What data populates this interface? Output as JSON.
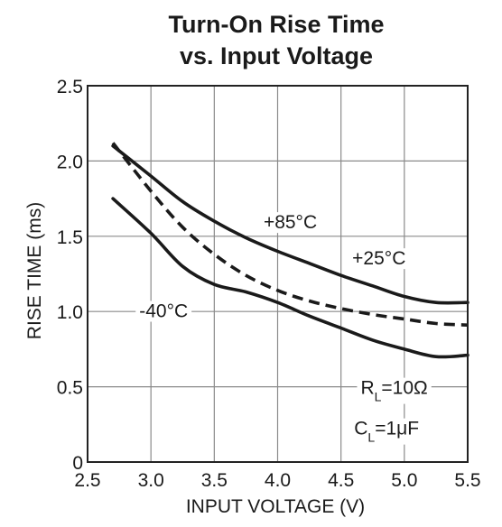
{
  "chart_data": {
    "type": "line",
    "title": [
      "Turn-On Rise Time",
      "vs. Input Voltage"
    ],
    "xlabel": "INPUT VOLTAGE (V)",
    "ylabel": "RISE TIME (ms)",
    "xlim": [
      2.5,
      5.5
    ],
    "ylim": [
      0,
      2.5
    ],
    "x_ticks": [
      2.5,
      3.0,
      3.5,
      4.0,
      4.5,
      5.0,
      5.5
    ],
    "x_tick_labels": [
      "2.5",
      "3.0",
      "3.5",
      "4.0",
      "4.5",
      "5.0",
      "5.5"
    ],
    "y_ticks": [
      0,
      0.5,
      1.0,
      1.5,
      2.0,
      2.5
    ],
    "y_tick_labels": [
      "0",
      "0.5",
      "1.0",
      "1.5",
      "2.0",
      "2.5"
    ],
    "grid": true,
    "series": [
      {
        "name": "+85°C",
        "style": "solid",
        "x": [
          2.7,
          3.0,
          3.25,
          3.5,
          3.75,
          4.0,
          4.25,
          4.5,
          4.75,
          5.0,
          5.25,
          5.5
        ],
        "y": [
          2.1,
          1.9,
          1.73,
          1.6,
          1.49,
          1.4,
          1.32,
          1.24,
          1.17,
          1.1,
          1.06,
          1.06
        ]
      },
      {
        "name": "+25°C",
        "style": "dashed",
        "x": [
          2.7,
          3.0,
          3.25,
          3.5,
          3.75,
          4.0,
          4.25,
          4.5,
          4.75,
          5.0,
          5.25,
          5.5
        ],
        "y": [
          2.12,
          1.8,
          1.56,
          1.38,
          1.24,
          1.14,
          1.07,
          1.02,
          0.98,
          0.95,
          0.92,
          0.91
        ]
      },
      {
        "name": "-40°C",
        "style": "solid",
        "x": [
          2.7,
          3.0,
          3.25,
          3.5,
          3.75,
          4.0,
          4.25,
          4.5,
          4.75,
          5.0,
          5.25,
          5.5
        ],
        "y": [
          1.75,
          1.52,
          1.3,
          1.18,
          1.13,
          1.06,
          0.97,
          0.89,
          0.81,
          0.75,
          0.7,
          0.71
        ]
      }
    ],
    "annotations": [
      {
        "id": "label-85",
        "text": "+85°C",
        "x": 4.1,
        "y": 1.6
      },
      {
        "id": "label-25",
        "text": "+25°C",
        "x": 4.8,
        "y": 1.36
      },
      {
        "id": "label-m40",
        "text": "-40°C",
        "x": 3.1,
        "y": 1.01
      },
      {
        "id": "label-rl",
        "main": "R",
        "sub": "L",
        "rest": "=10Ω",
        "x": 4.92,
        "y": 0.5
      },
      {
        "id": "label-cl",
        "main": "C",
        "sub": "L",
        "rest": "=1μF",
        "x": 4.86,
        "y": 0.23
      }
    ],
    "colors": {
      "line": "#1a1a1a",
      "grid": "#8a8a8a",
      "frame": "#222222"
    }
  }
}
